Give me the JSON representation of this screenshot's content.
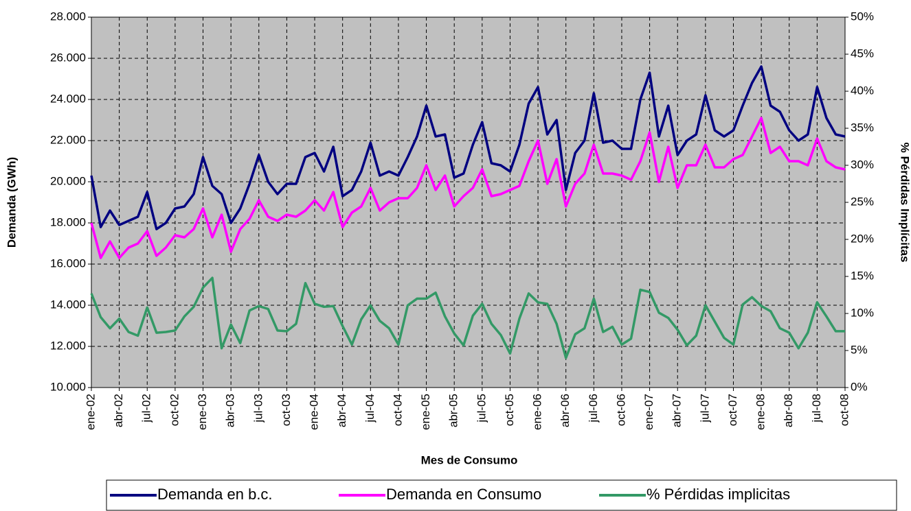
{
  "chart_data": {
    "type": "line",
    "categories": [
      "ene-02",
      null,
      null,
      "abr-02",
      null,
      null,
      "jul-02",
      null,
      null,
      "oct-02",
      null,
      null,
      "ene-03",
      null,
      null,
      "abr-03",
      null,
      null,
      "jul-03",
      null,
      null,
      "oct-03",
      null,
      null,
      "ene-04",
      null,
      null,
      "abr-04",
      null,
      null,
      "jul-04",
      null,
      null,
      "oct-04",
      null,
      null,
      "ene-05",
      null,
      null,
      "abr-05",
      null,
      null,
      "jul-05",
      null,
      null,
      "oct-05",
      null,
      null,
      "ene-06",
      null,
      null,
      "abr-06",
      null,
      null,
      "jul-06",
      null,
      null,
      "oct-06",
      null,
      null,
      "ene-07",
      null,
      null,
      "abr-07",
      null,
      null,
      "jul-07",
      null,
      null,
      "oct-07",
      null,
      null,
      "ene-08",
      null,
      null,
      "abr-08",
      null,
      null,
      "jul-08",
      null,
      null,
      "oct-08"
    ],
    "series": [
      {
        "name": "Demanda en b.c.",
        "color": "#000080",
        "values": [
          20300,
          17800,
          18600,
          17900,
          18100,
          18300,
          19500,
          17700,
          18000,
          18700,
          18800,
          19400,
          21200,
          19800,
          19400,
          18000,
          18700,
          19900,
          21300,
          20000,
          19400,
          19900,
          19900,
          21200,
          21400,
          20500,
          21700,
          19300,
          19600,
          20500,
          21900,
          20300,
          20500,
          20300,
          21200,
          22200,
          23700,
          22200,
          22300,
          20200,
          20400,
          21800,
          22900,
          20900,
          20800,
          20500,
          21800,
          23800,
          24600,
          22300,
          23000,
          19600,
          21400,
          22000,
          24300,
          21900,
          22000,
          21600,
          21600,
          24000,
          25300,
          22200,
          23700,
          21300,
          22000,
          22300,
          24200,
          22500,
          22200,
          22500,
          23700,
          24800,
          25600,
          23700,
          23400,
          22500,
          22000,
          22300,
          24600,
          23100,
          22300,
          22200
        ]
      },
      {
        "name": "Demanda en Consumo",
        "color": "#ff00ff",
        "values": [
          18000,
          16300,
          17100,
          16300,
          16800,
          17000,
          17600,
          16400,
          16800,
          17400,
          17300,
          17700,
          18700,
          17300,
          18400,
          16600,
          17700,
          18200,
          19100,
          18300,
          18100,
          18400,
          18300,
          18600,
          19100,
          18600,
          19500,
          17800,
          18500,
          18800,
          19700,
          18600,
          19000,
          19200,
          19200,
          19700,
          20800,
          19600,
          20300,
          18800,
          19300,
          19700,
          20600,
          19300,
          19400,
          19600,
          19800,
          21000,
          22000,
          19900,
          21100,
          18800,
          19900,
          20400,
          21800,
          20400,
          20400,
          20300,
          20100,
          21000,
          22400,
          20000,
          21700,
          19700,
          20800,
          20800,
          21800,
          20700,
          20700,
          21100,
          21300,
          22200,
          23100,
          21400,
          21700,
          21000,
          21000,
          20800,
          22100,
          21000,
          20700,
          20600
        ]
      },
      {
        "name": "% Pérdidas implicitas",
        "color": "#339966",
        "axis": "y2",
        "values": [
          12.7,
          9.5,
          8.0,
          9.3,
          7.5,
          7.0,
          10.8,
          7.4,
          7.5,
          7.7,
          9.6,
          10.9,
          13.5,
          14.8,
          5.3,
          8.5,
          6.0,
          10.4,
          11.0,
          10.6,
          7.7,
          7.6,
          8.6,
          14.1,
          11.3,
          10.9,
          11.0,
          8.3,
          5.8,
          9.2,
          11.1,
          9.0,
          8.0,
          5.8,
          11.1,
          12.0,
          12.0,
          12.8,
          9.6,
          7.3,
          5.7,
          9.7,
          11.3,
          8.6,
          7.1,
          4.6,
          9.3,
          12.7,
          11.5,
          11.3,
          8.6,
          4.0,
          7.2,
          8.0,
          12.0,
          7.5,
          8.2,
          5.8,
          6.6,
          13.2,
          12.9,
          10.1,
          9.4,
          7.8,
          5.7,
          7.0,
          11.1,
          8.9,
          6.7,
          5.8,
          11.2,
          12.2,
          11.0,
          10.3,
          8.0,
          7.4,
          5.3,
          7.4,
          11.5,
          9.6,
          7.6,
          7.6
        ]
      }
    ],
    "xlabel": "Mes de Consumo",
    "ylabel": "Demanda (GWh)",
    "y2label": "% Pérdidas Implícitas",
    "ylim": [
      10000,
      28000
    ],
    "yticks": [
      {
        "value": 10000,
        "label": "10.000"
      },
      {
        "value": 12000,
        "label": "12.000"
      },
      {
        "value": 14000,
        "label": "14.000"
      },
      {
        "value": 16000,
        "label": "16.000"
      },
      {
        "value": 18000,
        "label": "18.000"
      },
      {
        "value": 20000,
        "label": "20.000"
      },
      {
        "value": 22000,
        "label": "22.000"
      },
      {
        "value": 24000,
        "label": "24.000"
      },
      {
        "value": 26000,
        "label": "26.000"
      },
      {
        "value": 28000,
        "label": "28.000"
      }
    ],
    "y2lim": [
      0,
      50
    ],
    "y2ticks": [
      {
        "value": 0,
        "label": "0%"
      },
      {
        "value": 5,
        "label": "5%"
      },
      {
        "value": 10,
        "label": "10%"
      },
      {
        "value": 15,
        "label": "15%"
      },
      {
        "value": 20,
        "label": "20%"
      },
      {
        "value": 25,
        "label": "25%"
      },
      {
        "value": 30,
        "label": "30%"
      },
      {
        "value": 35,
        "label": "35%"
      },
      {
        "value": 40,
        "label": "40%"
      },
      {
        "value": 45,
        "label": "45%"
      },
      {
        "value": 50,
        "label": "50%"
      }
    ],
    "grid": true,
    "legend": "bottom"
  }
}
